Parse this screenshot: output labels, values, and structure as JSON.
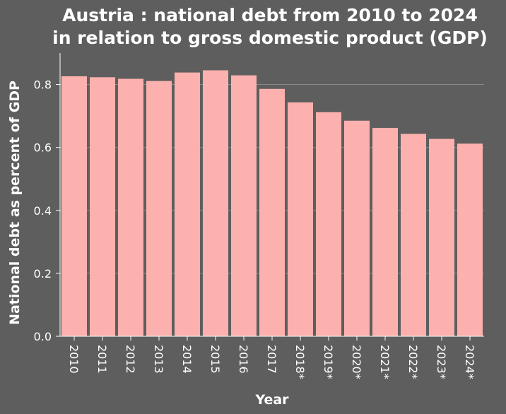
{
  "chart_data": {
    "type": "bar",
    "title": "Austria : national debt from 2010 to 2024",
    "subtitle": "in relation to gross domestic product (GDP)",
    "xlabel": "Year",
    "ylabel": "National debt as percent of GDP",
    "categories": [
      "2010",
      "2011",
      "2012",
      "2013",
      "2014",
      "2015",
      "2016",
      "2017",
      "2018*",
      "2019*",
      "2020*",
      "2021*",
      "2022*",
      "2023*",
      "2024*"
    ],
    "values": [
      0.826,
      0.823,
      0.818,
      0.811,
      0.838,
      0.845,
      0.829,
      0.786,
      0.743,
      0.712,
      0.685,
      0.662,
      0.643,
      0.627,
      0.612
    ],
    "ylim": [
      0,
      0.9
    ],
    "yticks": [
      "0.0",
      "0.2",
      "0.4",
      "0.6",
      "0.8"
    ],
    "grid": true,
    "colors": {
      "background": "#5e5e5e",
      "bar": "#fcb1ae",
      "axis": "#ffffff",
      "grid": "#8a8a8a"
    }
  }
}
